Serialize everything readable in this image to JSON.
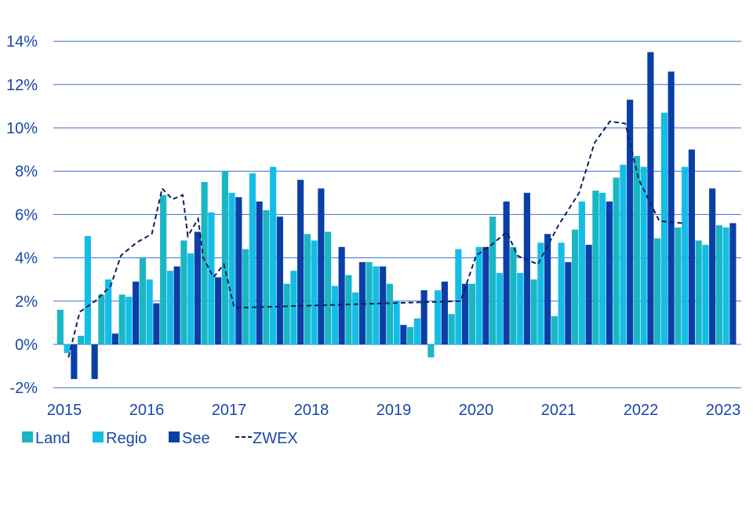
{
  "chart_data": {
    "type": "bar",
    "title": "",
    "xlabel": "",
    "ylabel": "",
    "ylim": [
      -2,
      14
    ],
    "y_ticks": [
      -2,
      0,
      2,
      4,
      6,
      8,
      10,
      12,
      14
    ],
    "y_tick_labels": [
      "-2%",
      "0%",
      "2%",
      "4%",
      "6%",
      "8%",
      "10%",
      "12%",
      "14%"
    ],
    "x_tick_labels": [
      "2015",
      "2016",
      "2017",
      "2018",
      "2019",
      "2020",
      "2021",
      "2022",
      "2023"
    ],
    "grid": "horizontal",
    "legend_position": "bottom-left",
    "colors": {
      "Land": "#1ab6c4",
      "Regio": "#14bde6",
      "See": "#0a3fa8",
      "ZWEX": "#0d1f5c",
      "axis_text": "#1a47a8",
      "grid": "#3c6fd0"
    },
    "categories": [
      "2015 Q1",
      "2015 Q2",
      "2015 Q3",
      "2015 Q4",
      "2016 Q1",
      "2016 Q2",
      "2016 Q3",
      "2016 Q4",
      "2017 Q1",
      "2017 Q2",
      "2017 Q3",
      "2017 Q4",
      "2018 Q1",
      "2018 Q2",
      "2018 Q3",
      "2018 Q4",
      "2019 Q1",
      "2019 Q2",
      "2019 Q3",
      "2019 Q4",
      "2020 Q1",
      "2020 Q2",
      "2020 Q3",
      "2020 Q4",
      "2021 Q1",
      "2021 Q2",
      "2021 Q3",
      "2021 Q4",
      "2022 Q1",
      "2022 Q2",
      "2022 Q3",
      "2022 Q4"
    ],
    "series": [
      {
        "name": "Land",
        "type": "bar",
        "values": [
          1.6,
          0.4,
          2.3,
          2.3,
          4.0,
          6.9,
          4.8,
          7.5,
          8.0,
          4.4,
          6.2,
          2.8,
          5.1,
          5.2,
          3.2,
          3.8,
          2.8,
          0.8,
          -0.6,
          1.4,
          2.8,
          5.9,
          4.5,
          3.0,
          1.3,
          5.3,
          7.1,
          7.7,
          8.7,
          4.9,
          5.4,
          4.8
        ]
      },
      {
        "name": "Regio",
        "type": "bar",
        "values": [
          -0.4,
          5.0,
          3.0,
          2.2,
          3.0,
          3.4,
          4.2,
          6.1,
          7.0,
          7.9,
          8.2,
          3.4,
          4.8,
          2.7,
          2.4,
          3.6,
          2.0,
          1.2,
          2.5,
          4.4,
          4.5,
          3.3,
          3.3,
          4.7,
          4.7,
          6.6,
          7.0,
          8.3,
          8.2,
          10.7,
          8.2,
          4.6
        ]
      },
      {
        "name": "See",
        "type": "bar",
        "values": [
          -1.6,
          -1.6,
          0.5,
          2.9,
          1.9,
          3.6,
          5.2,
          3.1,
          6.8,
          6.6,
          5.9,
          7.6,
          7.2,
          4.5,
          3.8,
          3.6,
          0.9,
          2.5,
          2.9,
          2.8,
          4.5,
          6.6,
          7.0,
          5.1,
          3.8,
          4.6,
          6.6,
          11.3,
          13.5,
          12.6,
          9.0,
          7.2
        ]
      },
      {
        "name": "ZWEX",
        "type": "line",
        "x": [
          0.2,
          0.75,
          1.5,
          2.25,
          2.75,
          3.5,
          4.25,
          4.75,
          5.25,
          5.75,
          6.0,
          6.5,
          6.75,
          7.25,
          7.75,
          8.25,
          8.6
        ],
        "values": [
          -0.6,
          1.5,
          2.0,
          2.7,
          4.1,
          4.7,
          5.1,
          7.2,
          6.7,
          6.9,
          5.0,
          5.8,
          4.0,
          3.1,
          3.7,
          1.7,
          1.7
        ]
      }
    ]
  },
  "chart_data_continued": {
    "zwex_values_tail": [
      2.0,
      4.1,
      4.6,
      5.2,
      4.1,
      3.7,
      5.5,
      7.0,
      9.3,
      10.3,
      10.2,
      7.6,
      5.7,
      5.6
    ],
    "zwex_x_tail": [
      19.25,
      20.0,
      20.75,
      21.5,
      22.0,
      23.0,
      24.0,
      25.0,
      25.75,
      26.5,
      27.25,
      27.9,
      28.9,
      30.0
    ],
    "see_extra_2023": [
      5.4,
      5.6
    ],
    "land_regio_extra_2023": [
      5.5,
      5.4
    ]
  }
}
